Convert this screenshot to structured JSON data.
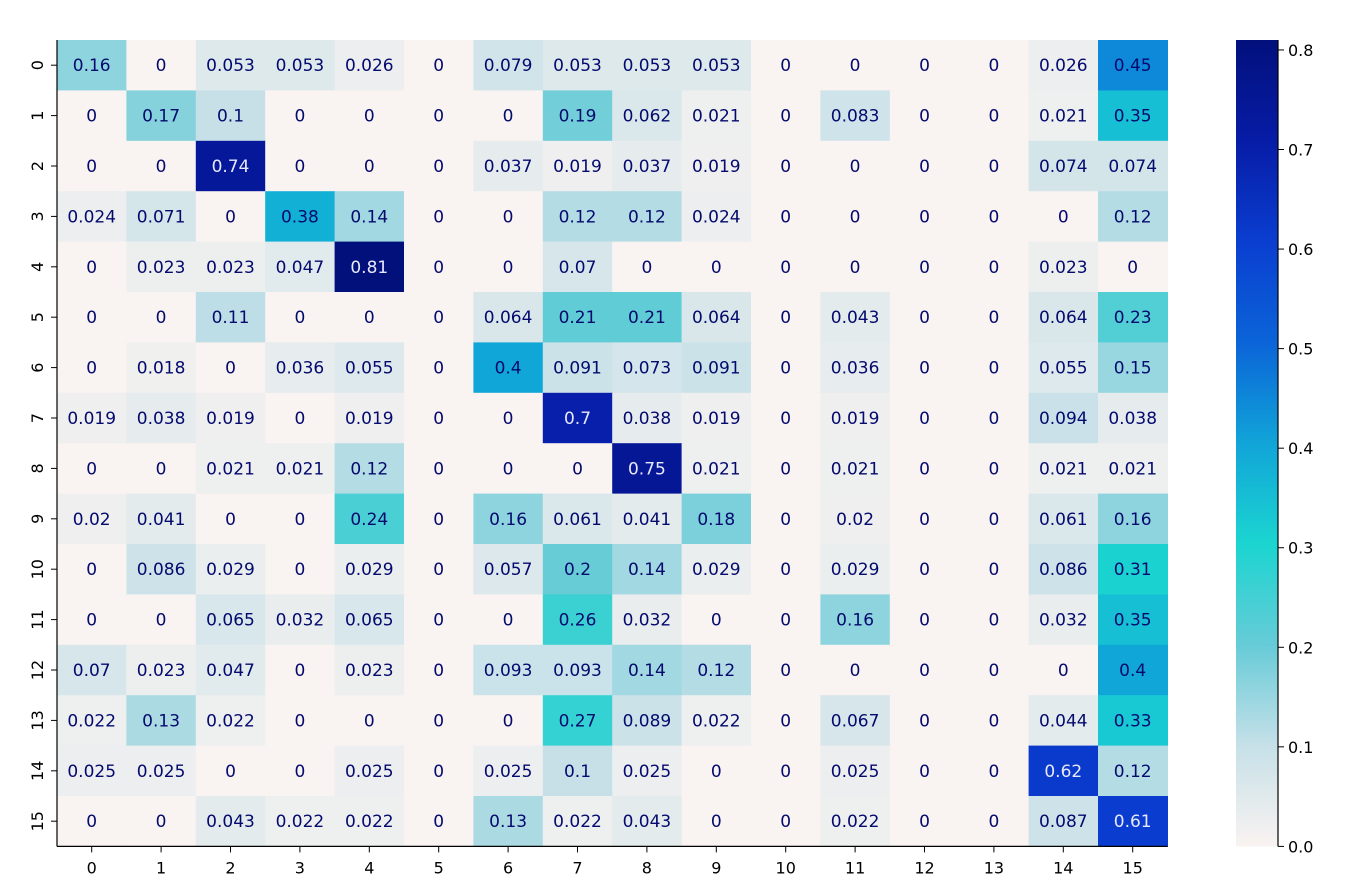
{
  "chart_data": {
    "type": "heatmap",
    "title": "",
    "xlabel": "",
    "ylabel": "",
    "x_labels": [
      "0",
      "1",
      "2",
      "3",
      "4",
      "5",
      "6",
      "7",
      "8",
      "9",
      "10",
      "11",
      "12",
      "13",
      "14",
      "15"
    ],
    "y_labels": [
      "0",
      "1",
      "2",
      "3",
      "4",
      "5",
      "6",
      "7",
      "8",
      "9",
      "10",
      "11",
      "12",
      "13",
      "14",
      "15"
    ],
    "values": [
      [
        0.16,
        0,
        0.053,
        0.053,
        0.026,
        0,
        0.079,
        0.053,
        0.053,
        0.053,
        0,
        0,
        0,
        0,
        0.026,
        0.45
      ],
      [
        0,
        0.17,
        0.1,
        0,
        0,
        0,
        0,
        0.19,
        0.062,
        0.021,
        0,
        0.083,
        0,
        0,
        0.021,
        0.35
      ],
      [
        0,
        0,
        0.74,
        0,
        0,
        0,
        0.037,
        0.019,
        0.037,
        0.019,
        0,
        0,
        0,
        0,
        0.074,
        0.074
      ],
      [
        0.024,
        0.071,
        0,
        0.38,
        0.14,
        0,
        0,
        0.12,
        0.12,
        0.024,
        0,
        0,
        0,
        0,
        0,
        0.12
      ],
      [
        0,
        0.023,
        0.023,
        0.047,
        0.81,
        0,
        0,
        0.07,
        0,
        0,
        0,
        0,
        0,
        0,
        0.023,
        0
      ],
      [
        0,
        0,
        0.11,
        0,
        0,
        0,
        0.064,
        0.21,
        0.21,
        0.064,
        0,
        0.043,
        0,
        0,
        0.064,
        0.23
      ],
      [
        0,
        0.018,
        0,
        0.036,
        0.055,
        0,
        0.4,
        0.091,
        0.073,
        0.091,
        0,
        0.036,
        0,
        0,
        0.055,
        0.15
      ],
      [
        0.019,
        0.038,
        0.019,
        0,
        0.019,
        0,
        0,
        0.7,
        0.038,
        0.019,
        0,
        0.019,
        0,
        0,
        0.094,
        0.038
      ],
      [
        0,
        0,
        0.021,
        0.021,
        0.12,
        0,
        0,
        0,
        0.75,
        0.021,
        0,
        0.021,
        0,
        0,
        0.021,
        0.021
      ],
      [
        0.02,
        0.041,
        0,
        0,
        0.24,
        0,
        0.16,
        0.061,
        0.041,
        0.18,
        0,
        0.02,
        0,
        0,
        0.061,
        0.16
      ],
      [
        0,
        0.086,
        0.029,
        0,
        0.029,
        0,
        0.057,
        0.2,
        0.14,
        0.029,
        0,
        0.029,
        0,
        0,
        0.086,
        0.31
      ],
      [
        0,
        0,
        0.065,
        0.032,
        0.065,
        0,
        0,
        0.26,
        0.032,
        0,
        0,
        0.16,
        0,
        0,
        0.032,
        0.35
      ],
      [
        0.07,
        0.023,
        0.047,
        0,
        0.023,
        0,
        0.093,
        0.093,
        0.14,
        0.12,
        0,
        0,
        0,
        0,
        0,
        0.4
      ],
      [
        0.022,
        0.13,
        0.022,
        0,
        0,
        0,
        0,
        0.27,
        0.089,
        0.022,
        0,
        0.067,
        0,
        0,
        0.044,
        0.33
      ],
      [
        0.025,
        0.025,
        0,
        0,
        0.025,
        0,
        0.025,
        0.1,
        0.025,
        0,
        0,
        0.025,
        0,
        0,
        0.62,
        0.12
      ],
      [
        0,
        0,
        0.043,
        0.022,
        0.022,
        0,
        0.13,
        0.022,
        0.043,
        0,
        0,
        0.022,
        0,
        0,
        0.087,
        0.61
      ]
    ],
    "colorbar": {
      "range": [
        0.0,
        0.81
      ],
      "ticks": [
        "0.0",
        "0.1",
        "0.2",
        "0.3",
        "0.4",
        "0.5",
        "0.6",
        "0.7",
        "0.8"
      ],
      "colors": [
        "#f9f3f1",
        "#c6e0e8",
        "#66cbd7",
        "#1bd5d0",
        "#11a4d8",
        "#0b64d8",
        "#0a3ed0",
        "#071ca6",
        "#02107c"
      ]
    },
    "grid": false,
    "legend": "none",
    "annotation_colors": {
      "dark": "#040a6e",
      "light": "#e8e8ff"
    }
  }
}
